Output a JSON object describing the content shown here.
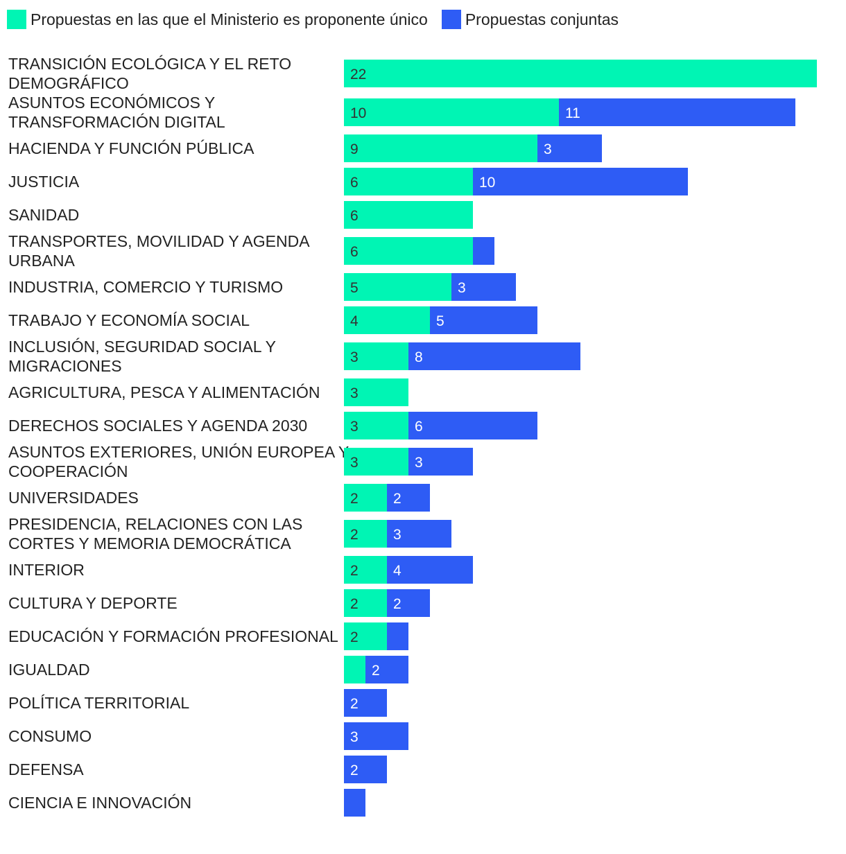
{
  "chart_data": {
    "type": "bar",
    "orientation": "horizontal",
    "stacked": true,
    "colors": {
      "unico": "#00f5b4",
      "conjuntas": "#2e5cf5",
      "text_on_unico": "#333333",
      "text_on_conjuntas": "#ffffff"
    },
    "legend": [
      {
        "name": "Propuestas en las que el Ministerio es proponente único",
        "color_key": "unico"
      },
      {
        "name": "Propuestas conjuntas",
        "color_key": "conjuntas"
      }
    ],
    "categories": [
      [
        "TRANSICIÓN ECOLÓGICA Y EL RETO",
        "DEMOGRÁFICO"
      ],
      [
        "ASUNTOS ECONÓMICOS Y",
        "TRANSFORMACIÓN DIGITAL"
      ],
      [
        "HACIENDA Y FUNCIÓN PÚBLICA"
      ],
      [
        "JUSTICIA"
      ],
      [
        "SANIDAD"
      ],
      [
        "TRANSPORTES, MOVILIDAD Y AGENDA",
        "URBANA"
      ],
      [
        "INDUSTRIA, COMERCIO Y TURISMO"
      ],
      [
        "TRABAJO Y ECONOMÍA SOCIAL"
      ],
      [
        "INCLUSIÓN, SEGURIDAD SOCIAL Y",
        "MIGRACIONES"
      ],
      [
        "AGRICULTURA, PESCA Y ALIMENTACIÓN"
      ],
      [
        "DERECHOS SOCIALES Y AGENDA 2030"
      ],
      [
        "ASUNTOS EXTERIORES, UNIÓN EUROPEA Y",
        "COOPERACIÓN"
      ],
      [
        "UNIVERSIDADES"
      ],
      [
        "PRESIDENCIA, RELACIONES CON LAS",
        "CORTES Y MEMORIA DEMOCRÁTICA"
      ],
      [
        "INTERIOR"
      ],
      [
        "CULTURA Y DEPORTE"
      ],
      [
        "EDUCACIÓN Y FORMACIÓN PROFESIONAL"
      ],
      [
        "IGUALDAD"
      ],
      [
        "POLÍTICA TERRITORIAL"
      ],
      [
        "CONSUMO"
      ],
      [
        "DEFENSA"
      ],
      [
        "CIENCIA E INNOVACIÓN"
      ]
    ],
    "series": [
      {
        "name": "Propuestas en las que el Ministerio es proponente único",
        "values": [
          22,
          10,
          9,
          6,
          6,
          6,
          5,
          4,
          3,
          3,
          3,
          3,
          2,
          2,
          2,
          2,
          2,
          1,
          0,
          0,
          0,
          0
        ],
        "labels": [
          "22",
          "10",
          "9",
          "6",
          "6",
          "6",
          "5",
          "4",
          "3",
          "3",
          "3",
          "3",
          "2",
          "2",
          "2",
          "2",
          "2",
          "",
          "",
          "",
          "",
          ""
        ]
      },
      {
        "name": "Propuestas conjuntas",
        "values": [
          0,
          11,
          3,
          10,
          0,
          1,
          3,
          5,
          8,
          0,
          6,
          3,
          2,
          3,
          4,
          2,
          1,
          2,
          2,
          3,
          2,
          1
        ],
        "labels": [
          "",
          "11",
          "3",
          "10",
          "",
          "",
          "3",
          "5",
          "8",
          "",
          "6",
          "3",
          "2",
          "3",
          "4",
          "2",
          "",
          "2",
          "2",
          "3",
          "2",
          ""
        ]
      }
    ]
  }
}
